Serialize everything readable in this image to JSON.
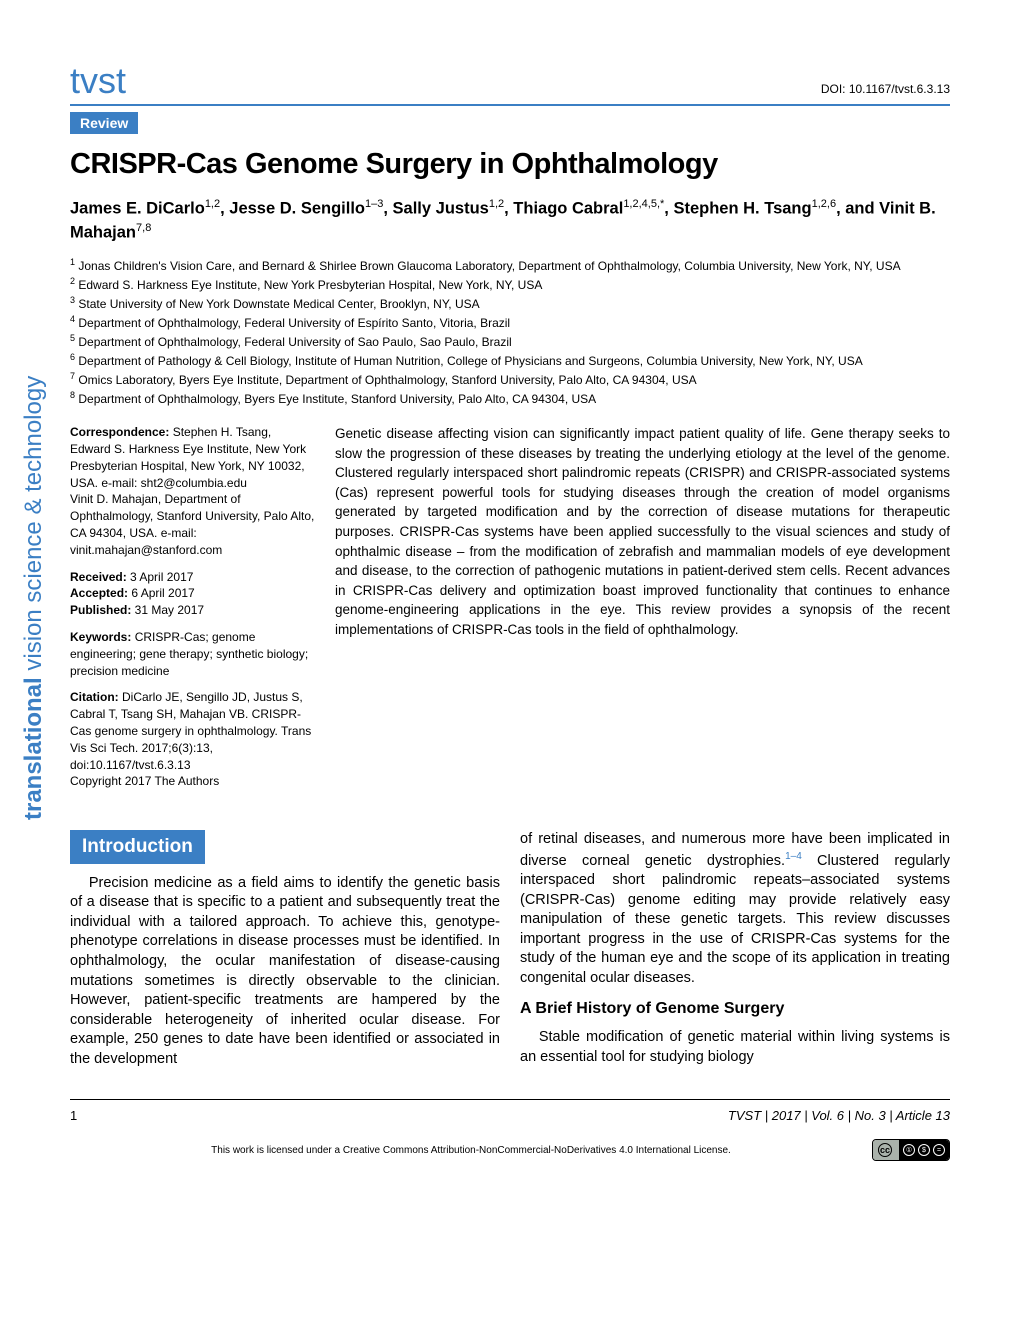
{
  "journal_abbrev": "tvst",
  "doi": "DOI: 10.1167/tvst.6.3.13",
  "article_type": "Review",
  "title": "CRISPR-Cas Genome Surgery in Ophthalmology",
  "authors_html": "James E. DiCarlo<sup>1,2</sup>, Jesse D. Sengillo<sup>1–3</sup>, Sally Justus<sup>1,2</sup>, Thiago Cabral<sup>1,2,4,5,*</sup>, Stephen H. Tsang<sup>1,2,6</sup>, and Vinit B. Mahajan<sup>7,8</sup>",
  "affiliations": [
    "<sup>1</sup> Jonas Children's Vision Care, and Bernard & Shirlee Brown Glaucoma Laboratory, Department of Ophthalmology, Columbia University, New York, NY, USA",
    "<sup>2</sup> Edward S. Harkness Eye Institute, New York Presbyterian Hospital, New York, NY, USA",
    "<sup>3</sup> State University of New York Downstate Medical Center, Brooklyn, NY, USA",
    "<sup>4</sup> Department of Ophthalmology, Federal University of Espírito Santo, Vitoria, Brazil",
    "<sup>5</sup> Department of Ophthalmology, Federal University of Sao Paulo, Sao Paulo, Brazil",
    "<sup>6</sup> Department of Pathology & Cell Biology, Institute of Human Nutrition, College of Physicians and Surgeons, Columbia University, New York, NY, USA",
    "<sup>7</sup> Omics Laboratory, Byers Eye Institute, Department of Ophthalmology, Stanford University, Palo Alto, CA 94304, USA",
    "<sup>8</sup> Department of Ophthalmology, Byers Eye Institute, Stanford University, Palo Alto, CA 94304, USA"
  ],
  "correspondence": {
    "label": "Correspondence:",
    "text": " Stephen H. Tsang, Edward S. Harkness Eye Institute, New York Presbyterian Hospital, New York, NY 10032, USA. e-mail: sht2@columbia.edu\nVinit D. Mahajan, Department of Ophthalmology, Stanford University, Palo Alto, CA 94304, USA. e-mail: vinit.mahajan@stanford.com"
  },
  "dates": {
    "received_label": "Received:",
    "received": " 3 April 2017",
    "accepted_label": "Accepted:",
    "accepted": " 6 April 2017",
    "published_label": "Published:",
    "published": " 31 May 2017"
  },
  "keywords": {
    "label": "Keywords:",
    "text": " CRISPR-Cas; genome engineering; gene therapy; synthetic biology; precision medicine"
  },
  "citation": {
    "label": "Citation:",
    "text": " DiCarlo JE, Sengillo JD, Justus S, Cabral T, Tsang SH, Mahajan VB. CRISPR-Cas genome surgery in ophthalmology. Trans Vis Sci Tech. 2017;6(3):13, doi:10.1167/tvst.6.3.13\nCopyright 2017 The Authors"
  },
  "abstract": "Genetic disease affecting vision can significantly impact patient quality of life. Gene therapy seeks to slow the progression of these diseases by treating the underlying etiology at the level of the genome. Clustered regularly interspaced short palindromic repeats (CRISPR) and CRISPR-associated systems (Cas) represent powerful tools for studying diseases through the creation of model organisms generated by targeted modification and by the correction of disease mutations for therapeutic purposes. CRISPR-Cas systems have been applied successfully to the visual sciences and study of ophthalmic disease – from the modification of zebrafish and mammalian models of eye development and disease, to the correction of pathogenic mutations in patient-derived stem cells. Recent advances in CRISPR-Cas delivery and optimization boast improved functionality that continues to enhance genome-engineering applications in the eye. This review provides a synopsis of the recent implementations of CRISPR-Cas tools in the field of ophthalmology.",
  "section_intro": "Introduction",
  "intro_col1": "Precision medicine as a field aims to identify the genetic basis of a disease that is specific to a patient and subsequently treat the individual with a tailored approach. To achieve this, genotype-phenotype correlations in disease processes must be identified. In ophthalmology, the ocular manifestation of disease-causing mutations sometimes is directly observable to the clinician. However, patient-specific treatments are hampered by the considerable heterogeneity of inherited ocular disease. For example, 250 genes to date have been identified or associated in the development",
  "intro_col2_p1_prefix": "of retinal diseases, and numerous more have been implicated in diverse corneal genetic dystrophies.",
  "intro_col2_p1_cite": "1–4",
  "intro_col2_p1_suffix": " Clustered regularly interspaced short palindromic repeats–associated systems (CRISPR-Cas) genome editing may provide relatively easy manipulation of these genetic targets. This review discusses important progress in the use of CRISPR-Cas systems for the study of the human eye and the scope of its application in treating congenital ocular diseases.",
  "subheading": "A Brief History of Genome Surgery",
  "intro_col2_p2": "Stable modification of genetic material within living systems is an essential tool for studying biology",
  "sidebar": {
    "bold": "translational",
    "rest": " vision science & technology"
  },
  "footer": {
    "page": "1",
    "cite": "TVST | 2017 | Vol. 6 | No. 3 | Article 13",
    "license": "This work is licensed under a Creative Commons Attribution-NonCommercial-NoDerivatives 4.0 International License.",
    "cc_label": "cc",
    "cc_icons": [
      "BY",
      "NC",
      "ND"
    ]
  },
  "colors": {
    "accent": "#3b7fc4",
    "text": "#000000",
    "bg": "#ffffff"
  },
  "typography": {
    "title_fontsize": 29,
    "authors_fontsize": 16.5,
    "affil_fontsize": 12,
    "meta_fontsize": 12,
    "abstract_fontsize": 13.5,
    "body_fontsize": 14.5,
    "section_header_fontsize": 19,
    "subheading_fontsize": 16
  }
}
